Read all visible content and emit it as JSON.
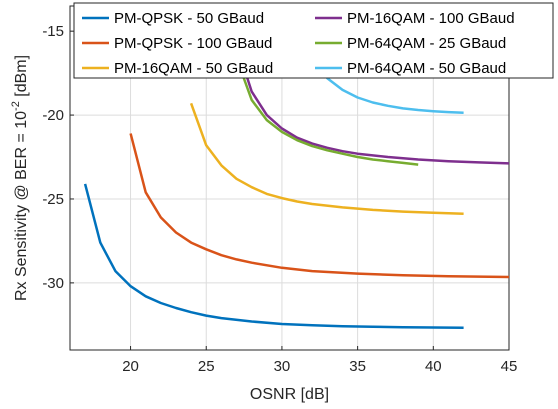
{
  "chart_data": {
    "type": "line",
    "xlabel": "OSNR [dB]",
    "ylabel": {
      "prefix": "Rx Sensitivity @ BER = 10",
      "exponent": "-2",
      "suffix": " [dBm]"
    },
    "xlim": [
      16,
      45
    ],
    "ylim": [
      -34,
      -13.5
    ],
    "xticks": [
      20,
      25,
      30,
      35,
      40,
      45
    ],
    "yticks": [
      -30,
      -25,
      -20,
      -15
    ],
    "grid": true,
    "legend_position": "top",
    "series": [
      {
        "name": "PM-QPSK - 50 GBaud",
        "color": "#0072BD",
        "x": [
          17,
          18,
          19,
          20,
          21,
          22,
          23,
          24,
          25,
          26,
          28,
          30,
          32,
          34,
          36,
          38,
          40,
          42
        ],
        "y": [
          -24.1,
          -27.6,
          -29.3,
          -30.2,
          -30.8,
          -31.2,
          -31.5,
          -31.75,
          -31.95,
          -32.1,
          -32.3,
          -32.45,
          -32.52,
          -32.58,
          -32.62,
          -32.64,
          -32.66,
          -32.67
        ]
      },
      {
        "name": "PM-QPSK - 100 GBaud",
        "color": "#D95319",
        "x": [
          20,
          21,
          22,
          23,
          24,
          25,
          26,
          27,
          28,
          30,
          32,
          35,
          38,
          41,
          45
        ],
        "y": [
          -21.1,
          -24.6,
          -26.1,
          -27.0,
          -27.6,
          -28.0,
          -28.35,
          -28.6,
          -28.8,
          -29.1,
          -29.3,
          -29.45,
          -29.55,
          -29.6,
          -29.65
        ]
      },
      {
        "name": "PM-16QAM - 50 GBaud",
        "color": "#EDB120",
        "x": [
          24,
          25,
          26,
          27,
          28,
          29,
          30,
          31,
          32,
          34,
          36,
          38,
          40,
          42
        ],
        "y": [
          -19.3,
          -21.8,
          -23.0,
          -23.8,
          -24.3,
          -24.7,
          -24.95,
          -25.15,
          -25.3,
          -25.5,
          -25.65,
          -25.75,
          -25.82,
          -25.88
        ]
      },
      {
        "name": "PM-16QAM - 100 GBaud",
        "color": "#7E2F8E",
        "x": [
          27,
          28,
          29,
          30,
          31,
          32,
          33,
          34,
          35,
          37,
          39,
          41,
          43,
          45
        ],
        "y": [
          -15.8,
          -18.6,
          -20.0,
          -20.8,
          -21.35,
          -21.7,
          -21.95,
          -22.15,
          -22.3,
          -22.5,
          -22.65,
          -22.75,
          -22.82,
          -22.88
        ]
      },
      {
        "name": "PM-64QAM - 25 GBaud",
        "color": "#77AC30",
        "x": [
          27,
          28,
          29,
          30,
          31,
          32,
          33,
          34,
          35,
          36,
          37,
          38,
          39
        ],
        "y": [
          -16.6,
          -19.1,
          -20.3,
          -21.0,
          -21.5,
          -21.85,
          -22.1,
          -22.3,
          -22.5,
          -22.65,
          -22.75,
          -22.85,
          -22.95
        ]
      },
      {
        "name": "PM-64QAM - 50 GBaud",
        "color": "#4DBEEE",
        "x": [
          31,
          32,
          33,
          34,
          35,
          36,
          37,
          38,
          39,
          40,
          41,
          42
        ],
        "y": [
          -15.0,
          -16.8,
          -17.8,
          -18.5,
          -18.95,
          -19.25,
          -19.45,
          -19.6,
          -19.7,
          -19.77,
          -19.82,
          -19.86
        ]
      }
    ]
  }
}
